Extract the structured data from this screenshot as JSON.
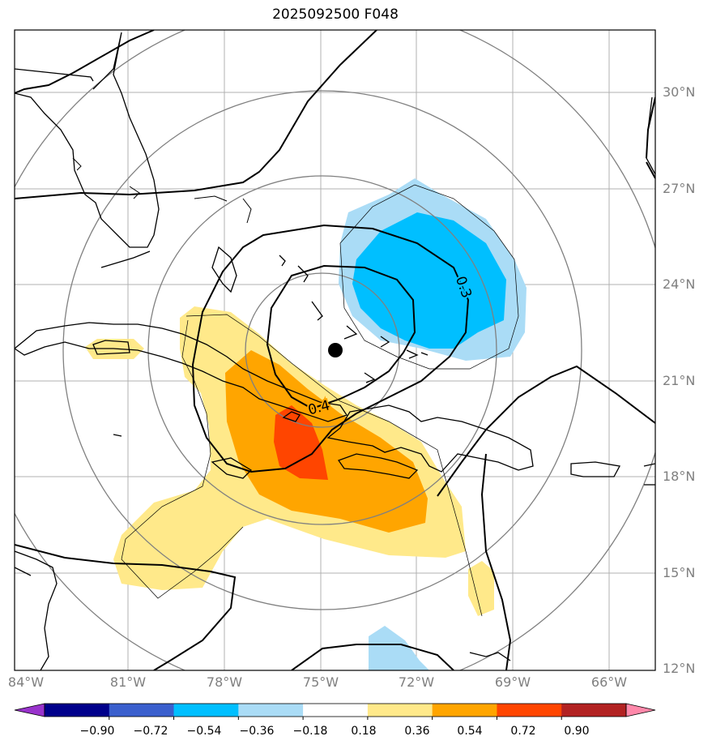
{
  "title": "2025092500 F048",
  "map": {
    "lat_labels": [
      "30°N",
      "27°N",
      "24°N",
      "21°N",
      "18°N",
      "15°N",
      "12°N"
    ],
    "lon_labels": [
      "84°W",
      "81°W",
      "78°W",
      "75°W",
      "72°W",
      "69°W",
      "66°W"
    ],
    "extent": {
      "lon_min": -84.0,
      "lon_max": -64.0,
      "lat_min": 12.0,
      "lat_max": 32.0
    },
    "center_marker": {
      "lon": -74.5,
      "lat": 22.0
    },
    "contour_labels": [
      "0.3",
      "0.4"
    ]
  },
  "colorbar": {
    "tick_labels": [
      "−0.90",
      "−0.72",
      "−0.54",
      "−0.36",
      "−0.18",
      "0.18",
      "0.36",
      "0.54",
      "0.72",
      "0.90"
    ],
    "colors": [
      "#9933cc",
      "#00008b",
      "#3a5fcd",
      "#00bfff",
      "#aadcf6",
      "#ffffff",
      "#ffe98a",
      "#ffa500",
      "#ff4500",
      "#b22222",
      "#ff88aa"
    ]
  },
  "colors": {
    "grid": "#b0b0b0",
    "range_ring": "#808080",
    "coast": "#000000",
    "neg_light": "#aadcf6",
    "neg_strong": "#00bfff",
    "pos_light": "#ffe98a",
    "pos_mid": "#ffa500",
    "pos_strong": "#ff4500"
  }
}
